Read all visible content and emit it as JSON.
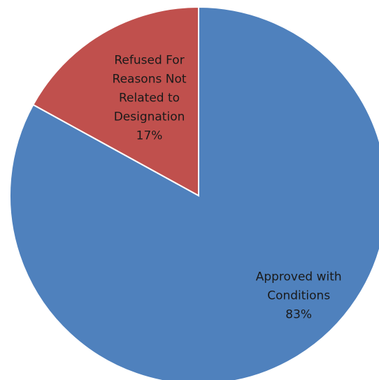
{
  "chart_data": {
    "type": "pie",
    "categories": [
      "Approved with Conditions",
      "Refused For Reasons Not Related to Designation"
    ],
    "values": [
      83,
      17
    ],
    "value_labels": [
      "83%",
      "17%"
    ],
    "colors": [
      "#4f81bd",
      "#c0504d"
    ]
  }
}
